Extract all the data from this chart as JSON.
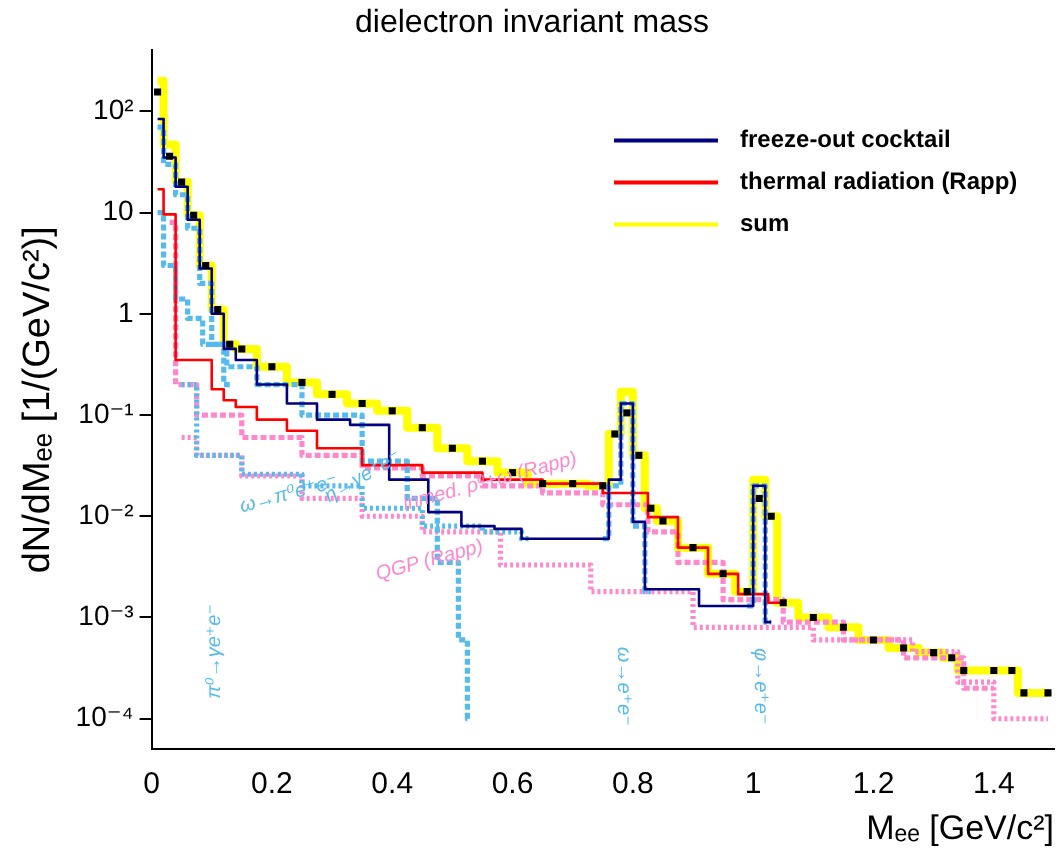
{
  "chart_data": {
    "type": "step",
    "title": "dielectron invariant mass",
    "xlabel": "Mₑₑ [GeV/c²]",
    "ylabel": "dN/dMₑₑ [1/(GeV/c²)]",
    "log": "y",
    "xlim": [
      0,
      1.5
    ],
    "ylim": [
      5e-05,
      400
    ],
    "xticks": [
      0,
      0.2,
      0.4,
      0.6,
      0.8,
      1,
      1.2,
      1.4
    ],
    "yticks": [
      {
        "value": 0.0001,
        "label": "10⁻⁴"
      },
      {
        "value": 0.001,
        "label": "10⁻³"
      },
      {
        "value": 0.01,
        "label": "10⁻²"
      },
      {
        "value": 0.1,
        "label": "10⁻¹"
      },
      1,
      10,
      {
        "value": 100,
        "label": "10²"
      }
    ],
    "grid": false,
    "legend": "top right",
    "series": [
      {
        "name": "freeze-out cocktail",
        "color": "#000080",
        "line_style": "solid",
        "x": [
          0.01,
          0.03,
          0.05,
          0.07,
          0.09,
          0.11,
          0.13,
          0.15,
          0.2,
          0.25,
          0.3,
          0.36,
          0.43,
          0.49,
          0.54,
          0.6,
          0.63,
          0.75,
          0.77,
          0.79,
          0.81,
          0.83,
          0.99,
          1.01,
          1.03
        ],
        "values": [
          84,
          35,
          18,
          8.5,
          2.8,
          1,
          0.45,
          0.35,
          0.2,
          0.13,
          0.09,
          0.08,
          0.023,
          0.011,
          0.008,
          0.0075,
          0.006,
          0.006,
          0.023,
          0.13,
          0.0088,
          0.0019,
          0.0013,
          0.02,
          0.0009
        ]
      },
      {
        "name": "thermal radiation (Rapp)",
        "color": "#ff0000",
        "line_style": "solid",
        "x": [
          0.01,
          0.03,
          0.05,
          0.07,
          0.09,
          0.11,
          0.13,
          0.15,
          0.2,
          0.25,
          0.3,
          0.4,
          0.5,
          0.6,
          0.7,
          0.8,
          0.85,
          0.9,
          0.95,
          1,
          1.05
        ],
        "values": [
          17,
          9.6,
          0.35,
          0.35,
          0.35,
          0.18,
          0.14,
          0.12,
          0.09,
          0.07,
          0.047,
          0.032,
          0.027,
          0.023,
          0.021,
          0.017,
          0.0098,
          0.0049,
          0.0027,
          0.0017,
          0.0014
        ]
      },
      {
        "name": "sum",
        "color": "#ffff00",
        "line_style": "solid",
        "x": [
          0.01,
          0.03,
          0.05,
          0.07,
          0.09,
          0.11,
          0.13,
          0.15,
          0.2,
          0.25,
          0.3,
          0.35,
          0.4,
          0.45,
          0.5,
          0.55,
          0.6,
          0.65,
          0.7,
          0.75,
          0.77,
          0.79,
          0.81,
          0.83,
          0.85,
          0.9,
          0.95,
          0.99,
          1.01,
          1.03,
          1.05,
          1.1,
          1.15,
          1.2,
          1.25,
          1.3,
          1.33,
          1.35,
          1.4,
          1.43,
          1.45,
          1.49
        ],
        "values": [
          200,
          47,
          20,
          9.4,
          3,
          1.1,
          0.5,
          0.45,
          0.3,
          0.21,
          0.16,
          0.13,
          0.11,
          0.075,
          0.047,
          0.035,
          0.027,
          0.021,
          0.021,
          0.02,
          0.065,
          0.17,
          0.04,
          0.012,
          0.009,
          0.0049,
          0.0027,
          0.0018,
          0.023,
          0.01,
          0.0014,
          0.001,
          0.0008,
          0.0006,
          0.0005,
          0.00045,
          0.0004,
          0.0003,
          0.0003,
          0.0003,
          0.00018,
          0.00018
        ]
      },
      {
        "type": "scatter",
        "color": "#000000",
        "marker": "square",
        "x": [
          0.01,
          0.03,
          0.05,
          0.07,
          0.09,
          0.11,
          0.13,
          0.15,
          0.2,
          0.25,
          0.3,
          0.35,
          0.4,
          0.45,
          0.5,
          0.55,
          0.6,
          0.65,
          0.7,
          0.75,
          0.77,
          0.79,
          0.81,
          0.83,
          0.85,
          0.9,
          0.95,
          0.99,
          1.01,
          1.03,
          1.05,
          1.1,
          1.15,
          1.2,
          1.25,
          1.3,
          1.33,
          1.35,
          1.4,
          1.43,
          1.45,
          1.49
        ],
        "values": [
          155,
          36,
          20,
          9.4,
          3,
          1.1,
          0.5,
          0.45,
          0.3,
          0.21,
          0.16,
          0.13,
          0.11,
          0.075,
          0.047,
          0.035,
          0.027,
          0.021,
          0.021,
          0.02,
          0.065,
          0.105,
          0.04,
          0.012,
          0.009,
          0.0049,
          0.0027,
          0.0018,
          0.015,
          0.01,
          0.0014,
          0.001,
          0.0008,
          0.0006,
          0.0005,
          0.00045,
          0.0004,
          0.0003,
          0.0003,
          0.0003,
          0.00018,
          0.00018
        ]
      },
      {
        "color": "#55bbee",
        "line_style": "dashed",
        "x": [
          0.01,
          0.03,
          0.05,
          0.07,
          0.09,
          0.11,
          0.13
        ],
        "values": [
          70,
          30,
          15,
          7,
          2,
          0.5,
          0.2
        ]
      },
      {
        "color": "#55bbee",
        "line_style": "dashed",
        "x": [
          0.01,
          0.03,
          0.05,
          0.07,
          0.1,
          0.15,
          0.2,
          0.3,
          0.4,
          0.45,
          0.5,
          0.52,
          0.53
        ],
        "values": [
          10,
          3,
          1.4,
          0.9,
          0.5,
          0.3,
          0.2,
          0.1,
          0.035,
          0.015,
          0.0035,
          0.0006,
          0.0001
        ]
      },
      {
        "color": "#55bbee",
        "line_style": "dotted",
        "x": [
          0.05,
          0.1,
          0.2,
          0.3,
          0.4,
          0.5,
          0.6,
          0.63
        ],
        "values": [
          0.2,
          0.04,
          0.026,
          0.02,
          0.012,
          0.008,
          0.007,
          0.006
        ]
      },
      {
        "color": "#55bbee",
        "line_style": "dashed",
        "x": [
          0.75,
          0.77,
          0.79,
          0.81,
          0.83
        ],
        "values": [
          0.006,
          0.02,
          0.13,
          0.008,
          0.0018
        ]
      },
      {
        "color": "#55bbee",
        "line_style": "dashed",
        "x": [
          0.99,
          1.01,
          1.03
        ],
        "values": [
          0.0013,
          0.02,
          0.0009
        ]
      },
      {
        "color": "#ff88cc",
        "line_style": "dashed",
        "x": [
          0.03,
          0.05,
          0.1,
          0.2,
          0.3,
          0.4,
          0.5,
          0.6,
          0.7,
          0.8,
          0.85,
          0.9,
          1,
          1.1,
          1.2,
          1.3,
          1.4
        ],
        "values": [
          8,
          0.2,
          0.1,
          0.06,
          0.04,
          0.03,
          0.025,
          0.02,
          0.017,
          0.013,
          0.007,
          0.0035,
          0.0015,
          0.0009,
          0.0006,
          0.0004,
          0.0002
        ]
      },
      {
        "color": "#ff88cc",
        "line_style": "dotted",
        "x": [
          0.05,
          0.1,
          0.2,
          0.3,
          0.4,
          0.5,
          0.66,
          0.8,
          1,
          1.2,
          1.33,
          1.35,
          1.45,
          1.49
        ],
        "values": [
          0.06,
          0.04,
          0.025,
          0.015,
          0.01,
          0.007,
          0.0033,
          0.0018,
          0.0008,
          0.0006,
          0.00046,
          0.00023,
          0.0001,
          0.0001
        ]
      }
    ],
    "annotations": [
      "π⁰→γe⁺e⁻",
      "η→γe⁺e⁻",
      "ω→π⁰e⁺e⁻",
      "inmed. ρ⁰+ω (Rapp)",
      "QGP (Rapp)",
      "ω→e⁺e⁻",
      "φ→e⁺e⁻"
    ]
  }
}
